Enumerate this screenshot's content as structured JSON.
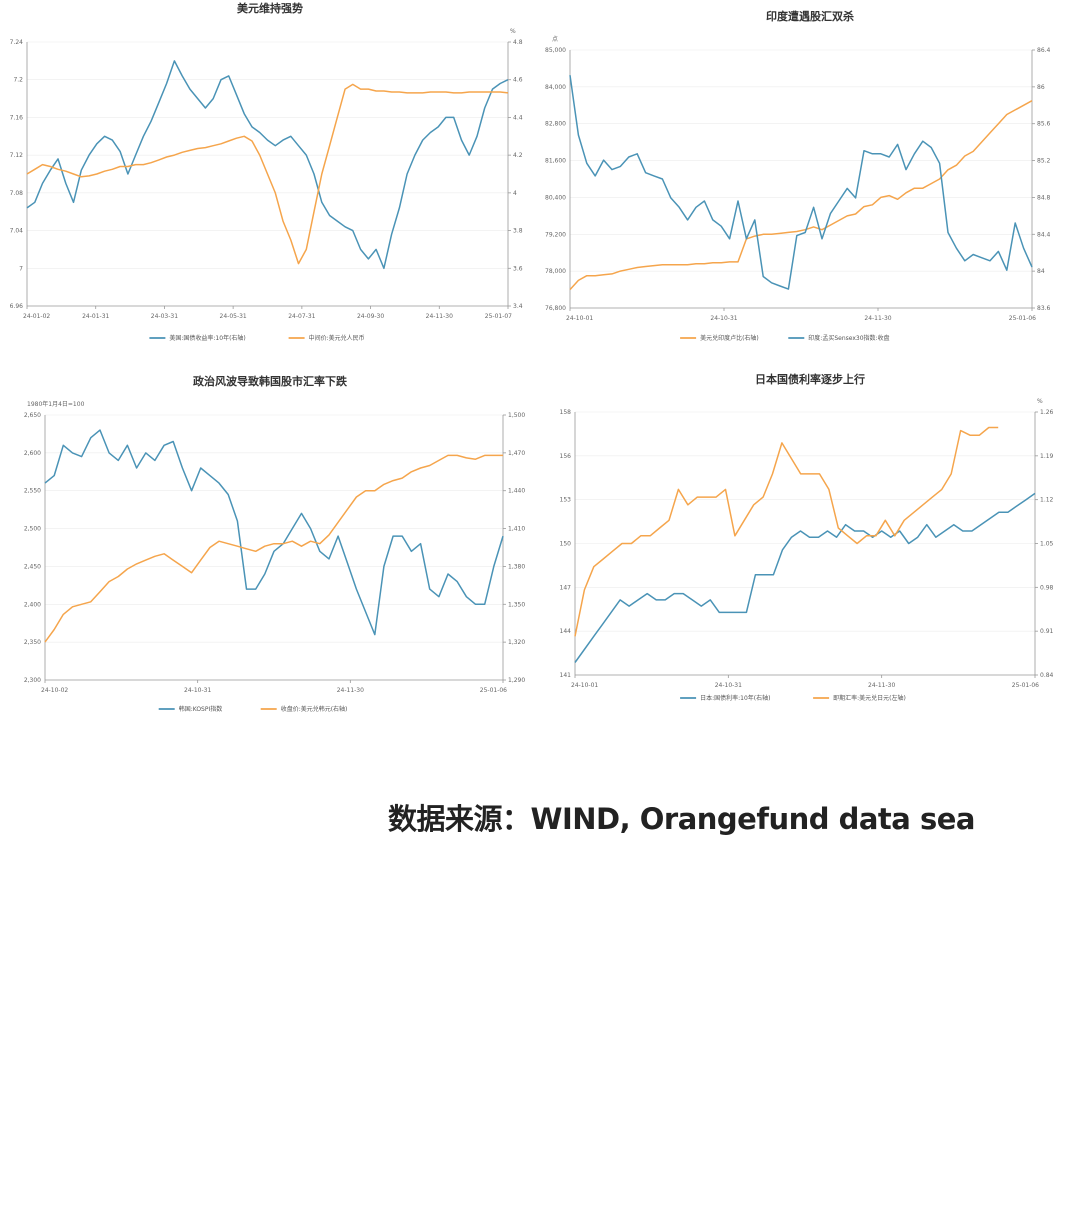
{
  "source_text": "数据来源：WIND, Orangefund data sea",
  "colors": {
    "blue": "#4a93b6",
    "orange": "#f5a54c"
  },
  "chart_data": [
    {
      "type": "line",
      "title": "美元维持强势",
      "left_unit": "",
      "right_unit": "%",
      "x_labels": [
        "24-01-02",
        "24-01-31",
        "24-03-31",
        "24-05-31",
        "24-07-31",
        "24-09-30",
        "24-11-30",
        "25-01-07"
      ],
      "left_axis": {
        "ticks": [
          "7.24",
          "7.2",
          "7.16",
          "7.12",
          "7.08",
          "7.04",
          "7",
          "6.96"
        ],
        "ylim": [
          6.96,
          7.24
        ]
      },
      "right_axis": {
        "ticks": [
          "4.8",
          "4.6",
          "4.4",
          "4.2",
          "4",
          "3.8",
          "3.6",
          "3.4"
        ],
        "ylim": [
          3.4,
          4.8
        ]
      },
      "series": [
        {
          "name": "美国:国债收益率:10年(右轴)",
          "axis": "right",
          "color": "#4a93b6",
          "values": [
            3.92,
            3.95,
            4.05,
            4.12,
            4.18,
            4.05,
            3.95,
            4.12,
            4.2,
            4.26,
            4.3,
            4.28,
            4.22,
            4.1,
            4.2,
            4.3,
            4.38,
            4.48,
            4.58,
            4.7,
            4.62,
            4.55,
            4.5,
            4.45,
            4.5,
            4.6,
            4.62,
            4.52,
            4.42,
            4.35,
            4.32,
            4.28,
            4.25,
            4.28,
            4.3,
            4.25,
            4.2,
            4.1,
            3.95,
            3.88,
            3.85,
            3.82,
            3.8,
            3.7,
            3.65,
            3.7,
            3.6,
            3.78,
            3.92,
            4.1,
            4.2,
            4.28,
            4.32,
            4.35,
            4.4,
            4.4,
            4.28,
            4.2,
            4.3,
            4.45,
            4.55,
            4.58,
            4.6
          ]
        },
        {
          "name": "中间价:美元兑人民币",
          "axis": "left",
          "color": "#f5a54c",
          "values": [
            7.1,
            7.105,
            7.11,
            7.108,
            7.105,
            7.103,
            7.1,
            7.097,
            7.098,
            7.1,
            7.103,
            7.105,
            7.108,
            7.108,
            7.11,
            7.11,
            7.112,
            7.115,
            7.118,
            7.12,
            7.123,
            7.125,
            7.127,
            7.128,
            7.13,
            7.132,
            7.135,
            7.138,
            7.14,
            7.135,
            7.12,
            7.1,
            7.08,
            7.05,
            7.03,
            7.005,
            7.02,
            7.06,
            7.1,
            7.13,
            7.16,
            7.19,
            7.195,
            7.19,
            7.19,
            7.188,
            7.188,
            7.187,
            7.187,
            7.186,
            7.186,
            7.186,
            7.187,
            7.187,
            7.187,
            7.186,
            7.186,
            7.187,
            7.187,
            7.187,
            7.187,
            7.187,
            7.186
          ]
        }
      ],
      "legend": [
        "美国:国债收益率:10年(右轴)",
        "中间价:美元兑人民币"
      ]
    },
    {
      "type": "line",
      "title": "印度遭遇股汇双杀",
      "left_unit": "点",
      "right_unit": "",
      "x_labels": [
        "24-10-01",
        "24-10-31",
        "24-11-30",
        "25-01-06"
      ],
      "left_axis": {
        "ticks": [
          "85,000",
          "84,000",
          "82,800",
          "81,600",
          "80,400",
          "79,200",
          "78,000",
          "76,800"
        ],
        "ylim": [
          76800,
          85000
        ]
      },
      "right_axis": {
        "ticks": [
          "86.4",
          "86",
          "85.6",
          "85.2",
          "84.8",
          "84.4",
          "84",
          "83.6"
        ],
        "ylim": [
          83.6,
          86.4
        ]
      },
      "series": [
        {
          "name": "美元兑印度卢比(右轴)",
          "axis": "right",
          "color": "#f5a54c",
          "values": [
            83.8,
            83.9,
            83.95,
            83.95,
            83.96,
            83.97,
            84.0,
            84.02,
            84.04,
            84.05,
            84.06,
            84.07,
            84.07,
            84.07,
            84.07,
            84.08,
            84.08,
            84.09,
            84.09,
            84.1,
            84.1,
            84.35,
            84.38,
            84.4,
            84.4,
            84.41,
            84.42,
            84.43,
            84.45,
            84.48,
            84.45,
            84.5,
            84.55,
            84.6,
            84.62,
            84.7,
            84.72,
            84.8,
            84.82,
            84.78,
            84.85,
            84.9,
            84.9,
            84.95,
            85.0,
            85.1,
            85.15,
            85.25,
            85.3,
            85.4,
            85.5,
            85.6,
            85.7,
            85.75,
            85.8,
            85.85
          ]
        },
        {
          "name": "印度:孟买Sensex30指数:收盘",
          "axis": "left",
          "color": "#4a93b6",
          "values": [
            84200,
            82300,
            81400,
            81000,
            81500,
            81200,
            81300,
            81600,
            81700,
            81100,
            81000,
            80900,
            80300,
            80000,
            79600,
            80000,
            80200,
            79600,
            79400,
            79000,
            80200,
            79000,
            79600,
            77800,
            77600,
            77500,
            77400,
            79100,
            79200,
            80000,
            79000,
            79800,
            80200,
            80600,
            80300,
            81800,
            81700,
            81700,
            81600,
            82000,
            81200,
            81700,
            82100,
            81900,
            81400,
            79200,
            78700,
            78300,
            78500,
            78400,
            78300,
            78600,
            78000,
            79500,
            78700,
            78100
          ]
        }
      ],
      "legend": [
        "美元兑印度卢比(右轴)",
        "印度:孟买Sensex30指数:收盘"
      ]
    },
    {
      "type": "line",
      "title": "政治风波导致韩国股市汇率下跌",
      "left_unit": "1980年1月4日=100",
      "right_unit": "",
      "x_labels": [
        "24-10-02",
        "24-10-31",
        "24-11-30",
        "25-01-06"
      ],
      "left_axis": {
        "ticks": [
          "2,650",
          "2,600",
          "2,550",
          "2,500",
          "2,450",
          "2,400",
          "2,350",
          "2,300"
        ],
        "ylim": [
          2300,
          2650
        ]
      },
      "right_axis": {
        "ticks": [
          "1,500",
          "1,470",
          "1,440",
          "1,410",
          "1,380",
          "1,350",
          "1,320",
          "1,290"
        ],
        "ylim": [
          1290,
          1500
        ]
      },
      "series": [
        {
          "name": "韩国:KOSPI指数",
          "axis": "left",
          "color": "#4a93b6",
          "values": [
            2560,
            2570,
            2610,
            2600,
            2595,
            2620,
            2630,
            2600,
            2590,
            2610,
            2580,
            2600,
            2590,
            2610,
            2615,
            2580,
            2550,
            2580,
            2570,
            2560,
            2545,
            2510,
            2420,
            2420,
            2440,
            2470,
            2480,
            2500,
            2520,
            2500,
            2470,
            2460,
            2490,
            2455,
            2420,
            2390,
            2360,
            2450,
            2490,
            2490,
            2470,
            2480,
            2420,
            2410,
            2440,
            2430,
            2410,
            2400,
            2400,
            2450,
            2490
          ]
        },
        {
          "name": "收盘价:美元兑韩元(右轴)",
          "axis": "right",
          "color": "#f5a54c",
          "values": [
            1320,
            1330,
            1342,
            1348,
            1350,
            1352,
            1360,
            1368,
            1372,
            1378,
            1382,
            1385,
            1388,
            1390,
            1385,
            1380,
            1375,
            1385,
            1395,
            1400,
            1398,
            1396,
            1394,
            1392,
            1396,
            1398,
            1398,
            1400,
            1396,
            1400,
            1398,
            1405,
            1415,
            1425,
            1435,
            1440,
            1440,
            1445,
            1448,
            1450,
            1455,
            1458,
            1460,
            1464,
            1468,
            1468,
            1466,
            1465,
            1468,
            1468,
            1468
          ]
        }
      ],
      "legend": [
        "韩国:KOSPI指数",
        "收盘价:美元兑韩元(右轴)"
      ]
    },
    {
      "type": "line",
      "title": "日本国债利率逐步上行",
      "left_unit": "",
      "right_unit": "%",
      "x_labels": [
        "24-10-01",
        "24-10-31",
        "24-11-30",
        "25-01-06"
      ],
      "left_axis": {
        "ticks": [
          "158",
          "156",
          "153",
          "150",
          "147",
          "144",
          "141"
        ],
        "ylim": [
          141,
          158
        ]
      },
      "right_axis": {
        "ticks": [
          "1.26",
          "1.19",
          "1.12",
          "1.05",
          "0.98",
          "0.91",
          "0.84"
        ],
        "ylim": [
          0.84,
          1.26
        ]
      },
      "series": [
        {
          "name": "日本:国债利率:10年(右轴)",
          "axis": "right",
          "color": "#4a93b6",
          "values": [
            0.86,
            0.88,
            0.9,
            0.92,
            0.94,
            0.96,
            0.95,
            0.96,
            0.97,
            0.96,
            0.96,
            0.97,
            0.97,
            0.96,
            0.95,
            0.96,
            0.94,
            0.94,
            0.94,
            0.94,
            1.0,
            1.0,
            1.0,
            1.04,
            1.06,
            1.07,
            1.06,
            1.06,
            1.07,
            1.06,
            1.08,
            1.07,
            1.07,
            1.06,
            1.07,
            1.06,
            1.07,
            1.05,
            1.06,
            1.08,
            1.06,
            1.07,
            1.08,
            1.07,
            1.07,
            1.08,
            1.09,
            1.1,
            1.1,
            1.11,
            1.12,
            1.13
          ]
        },
        {
          "name": "即期汇率:美元兑日元(左轴)",
          "axis": "left",
          "color": "#f5a54c",
          "values": [
            143.5,
            146.5,
            148,
            148.5,
            149,
            149.5,
            149.5,
            150,
            150,
            150.5,
            151,
            153,
            152,
            152.5,
            152.5,
            152.5,
            153,
            150,
            151,
            152,
            152.5,
            154,
            156,
            155,
            154,
            154,
            154,
            153,
            150.5,
            150,
            149.5,
            150,
            150,
            151,
            150,
            151,
            151.5,
            152,
            152.5,
            153,
            154,
            156.8,
            156.5,
            156.5,
            157,
            157
          ]
        }
      ],
      "legend": [
        "日本:国债利率:10年(右轴)",
        "即期汇率:美元兑日元(左轴)"
      ]
    }
  ]
}
